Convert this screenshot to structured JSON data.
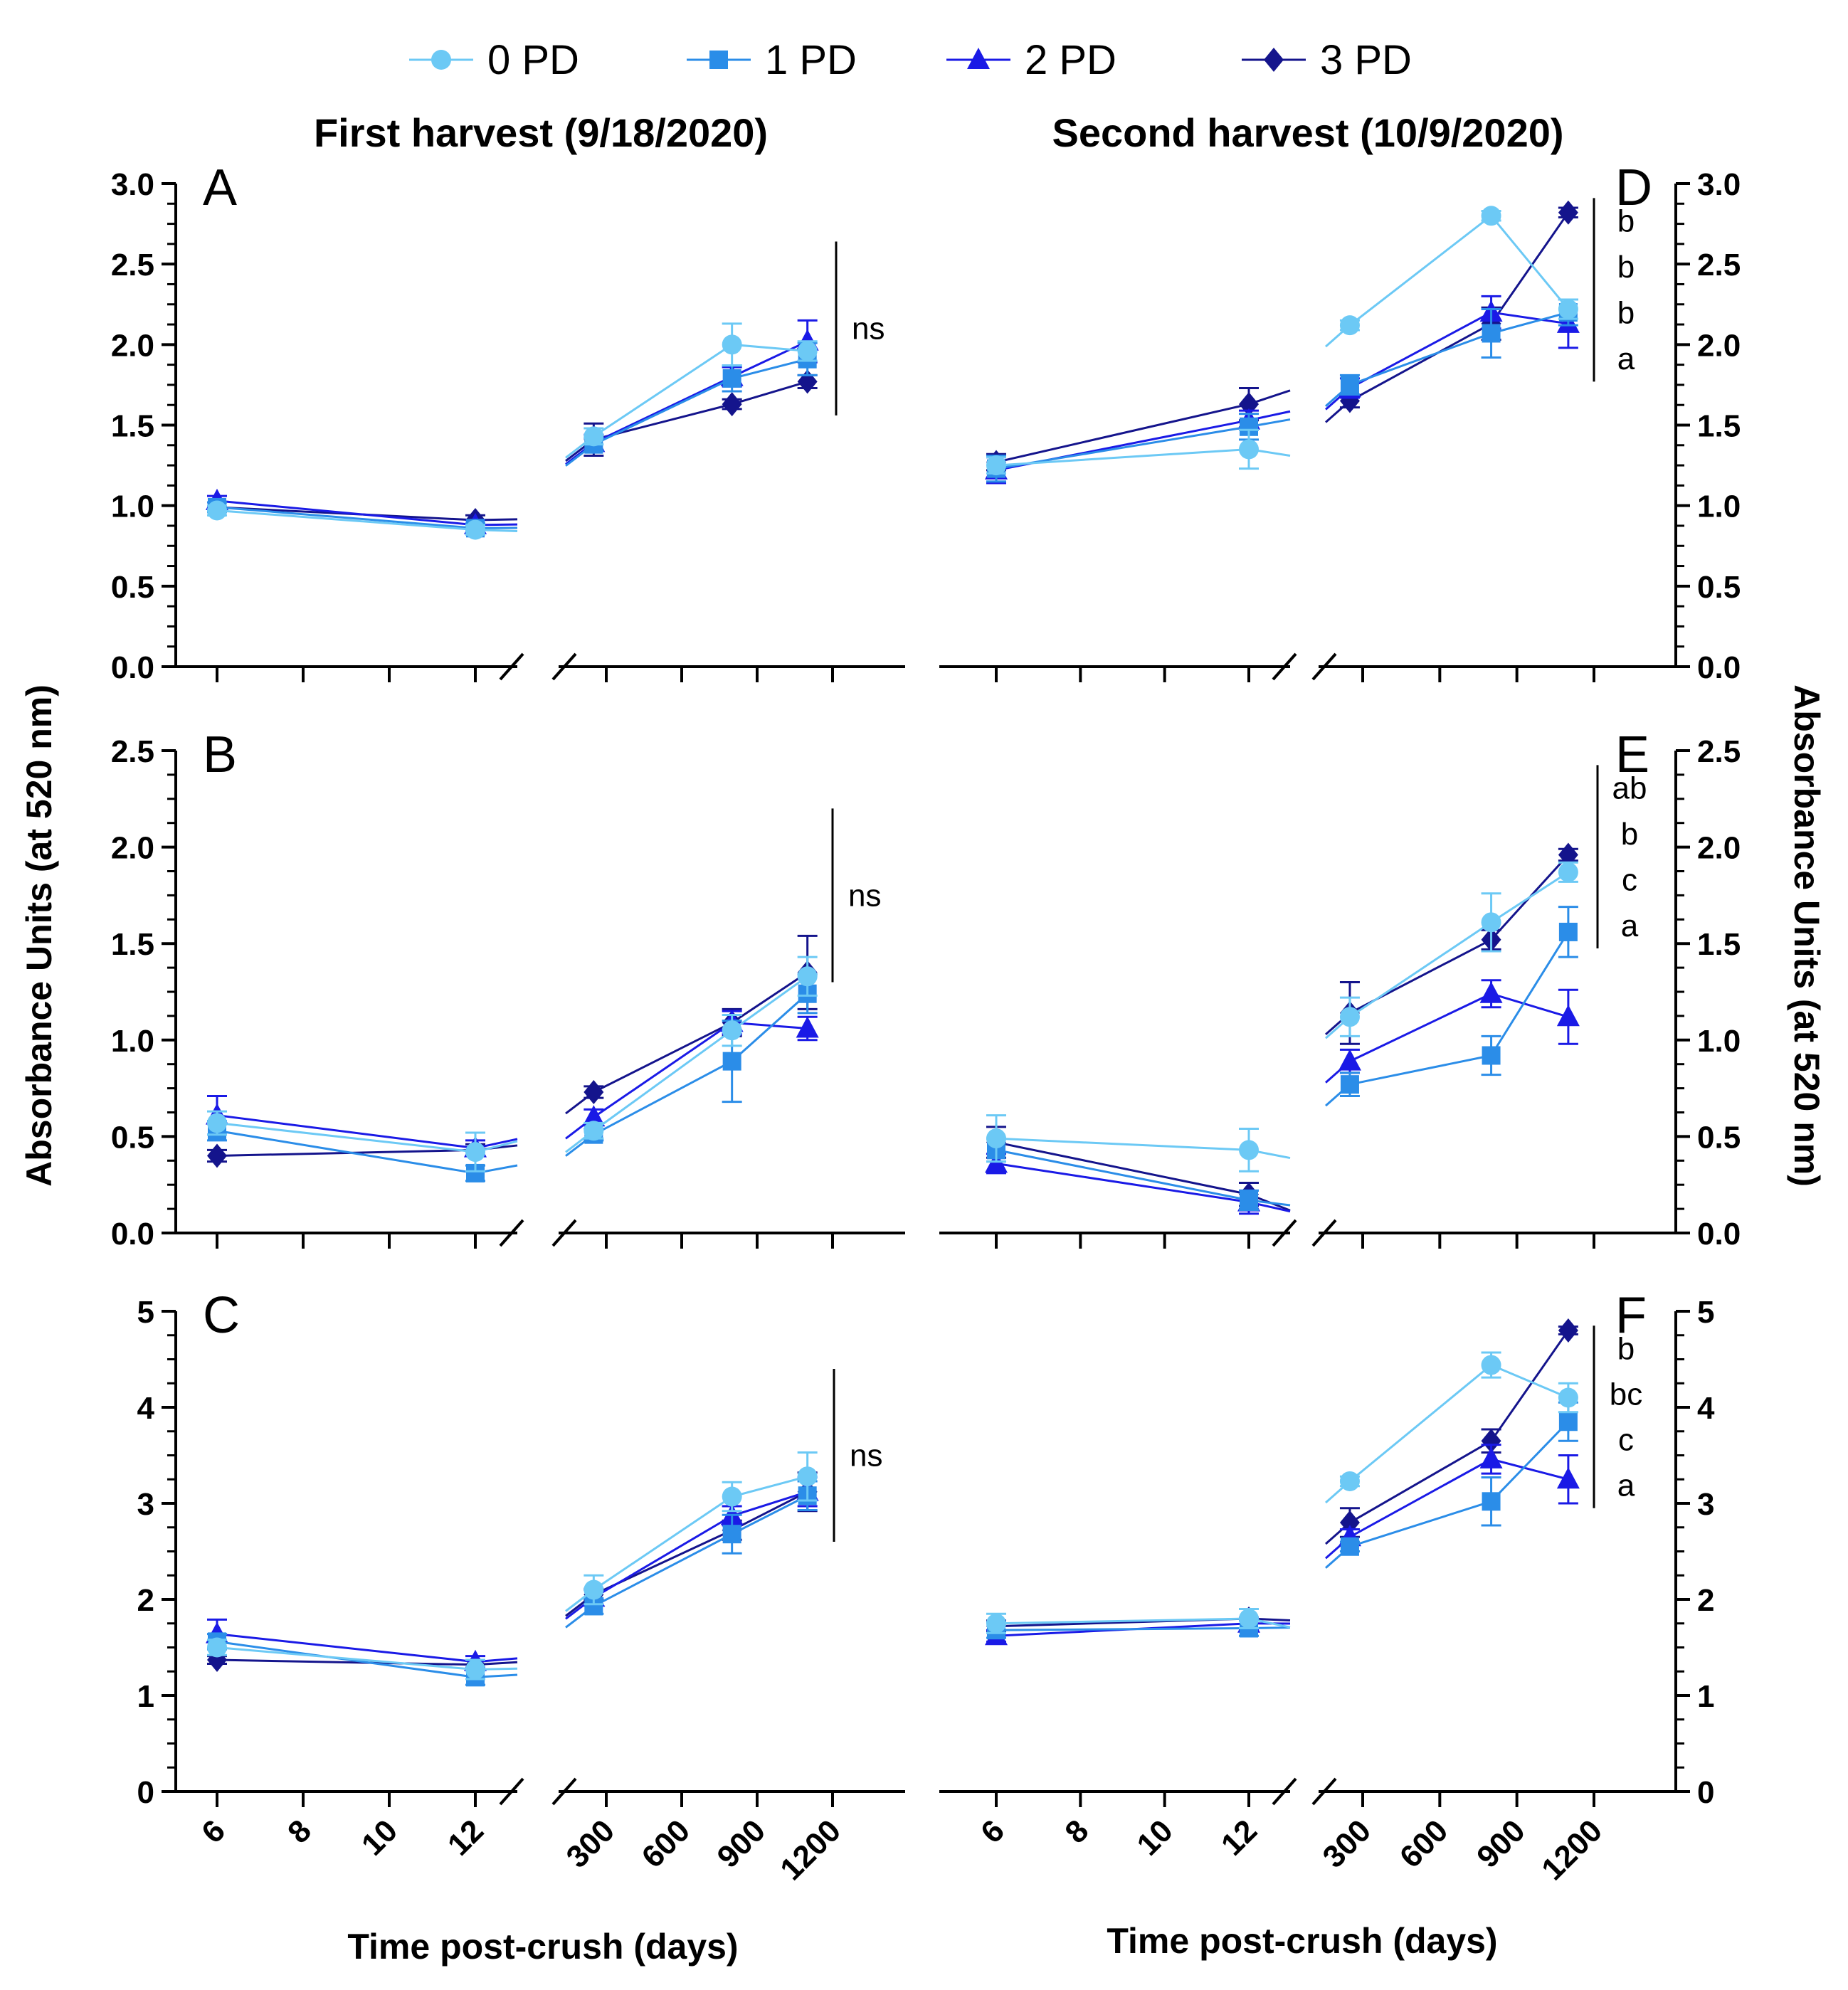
{
  "legend": {
    "entries": [
      {
        "label": "0 PD",
        "color": "#6cc9f5",
        "marker": "circle"
      },
      {
        "label": "1 PD",
        "color": "#2b8de8",
        "marker": "square"
      },
      {
        "label": "2 PD",
        "color": "#1a1ae6",
        "marker": "triangle"
      },
      {
        "label": "3 PD",
        "color": "#14148c",
        "marker": "diamond"
      }
    ]
  },
  "titles": {
    "first_harvest": "First harvest  (9/18/2020)",
    "second_harvest": "Second harvest (10/9/2020)"
  },
  "axes": {
    "y_label_left": "Absorbance Units (at 520 nm)",
    "y_label_right": "Absorbance Units (at 520 nm)",
    "x_label": "Time post-crush (days)",
    "x_ticks_early": [
      "6",
      "8",
      "10",
      "12"
    ],
    "x_ticks_late": [
      "300",
      "600",
      "900",
      "1200"
    ]
  },
  "chart_data": [
    {
      "panel": "A",
      "type": "line",
      "harvest": "First harvest",
      "ylim": [
        0,
        3.0
      ],
      "yticks": [
        "0.0",
        "0.5",
        "1.0",
        "1.5",
        "2.0",
        "2.5",
        "3.0"
      ],
      "x": [
        6,
        12,
        250,
        800,
        1100
      ],
      "series": [
        {
          "name": "0 PD",
          "values": [
            0.97,
            0.85,
            1.43,
            2.0,
            1.96
          ],
          "errors": [
            0.03,
            0.03,
            0.05,
            0.13,
            0.06
          ]
        },
        {
          "name": "1 PD",
          "values": [
            0.99,
            0.86,
            1.38,
            1.79,
            1.91
          ],
          "errors": [
            0.03,
            0.03,
            0.04,
            0.08,
            0.1
          ]
        },
        {
          "name": "2 PD",
          "values": [
            1.03,
            0.88,
            1.39,
            1.8,
            2.02
          ],
          "errors": [
            0.03,
            0.03,
            0.05,
            0.06,
            0.13
          ]
        },
        {
          "name": "3 PD",
          "values": [
            0.99,
            0.91,
            1.41,
            1.63,
            1.77
          ],
          "errors": [
            0.03,
            0.03,
            0.1,
            0.03,
            0.04
          ]
        }
      ],
      "significance": [
        "ns"
      ]
    },
    {
      "panel": "B",
      "type": "line",
      "harvest": "First harvest",
      "ylim": [
        0,
        2.5
      ],
      "yticks": [
        "0.0",
        "0.5",
        "1.0",
        "1.5",
        "2.0",
        "2.5"
      ],
      "x": [
        6,
        12,
        250,
        800,
        1100
      ],
      "series": [
        {
          "name": "0 PD",
          "values": [
            0.57,
            0.42,
            0.53,
            1.05,
            1.33
          ],
          "errors": [
            0.06,
            0.1,
            0.04,
            0.08,
            0.1
          ]
        },
        {
          "name": "1 PD",
          "values": [
            0.53,
            0.31,
            0.51,
            0.89,
            1.24
          ],
          "errors": [
            0.05,
            0.04,
            0.03,
            0.21,
            0.1
          ]
        },
        {
          "name": "2 PD",
          "values": [
            0.61,
            0.44,
            0.6,
            1.09,
            1.06
          ],
          "errors": [
            0.1,
            0.04,
            0.04,
            0.06,
            0.06
          ]
        },
        {
          "name": "3 PD",
          "values": [
            0.4,
            0.43,
            0.73,
            1.09,
            1.35
          ],
          "errors": [
            0.03,
            0.03,
            0.03,
            0.07,
            0.19
          ]
        }
      ],
      "significance": [
        "ns"
      ]
    },
    {
      "panel": "C",
      "type": "line",
      "harvest": "First harvest",
      "ylim": [
        0,
        5
      ],
      "yticks": [
        "0",
        "1",
        "2",
        "3",
        "4",
        "5"
      ],
      "x": [
        6,
        12,
        250,
        800,
        1100
      ],
      "series": [
        {
          "name": "0 PD",
          "values": [
            1.5,
            1.27,
            2.1,
            3.07,
            3.28
          ],
          "errors": [
            0.08,
            0.1,
            0.15,
            0.15,
            0.25
          ]
        },
        {
          "name": "1 PD",
          "values": [
            1.56,
            1.19,
            1.93,
            2.68,
            3.08
          ],
          "errors": [
            0.08,
            0.08,
            0.08,
            0.2,
            0.15
          ]
        },
        {
          "name": "2 PD",
          "values": [
            1.64,
            1.35,
            2.02,
            2.87,
            3.12
          ],
          "errors": [
            0.15,
            0.06,
            0.08,
            0.1,
            0.15
          ]
        },
        {
          "name": "3 PD",
          "values": [
            1.37,
            1.32,
            2.05,
            2.72,
            3.12
          ],
          "errors": [
            0.04,
            0.04,
            0.06,
            0.1,
            0.2
          ]
        }
      ],
      "significance": [
        "ns"
      ]
    },
    {
      "panel": "D",
      "type": "line",
      "harvest": "Second harvest",
      "ylim": [
        0,
        3.0
      ],
      "yticks": [
        "0.0",
        "0.5",
        "1.0",
        "1.5",
        "2.0",
        "2.5",
        "3.0"
      ],
      "x": [
        6,
        12,
        250,
        800,
        1100
      ],
      "series": [
        {
          "name": "0 PD",
          "values": [
            1.25,
            1.35,
            2.12,
            2.8,
            2.22
          ],
          "errors": [
            0.05,
            0.12,
            0.03,
            0.03,
            0.06
          ]
        },
        {
          "name": "1 PD",
          "values": [
            1.23,
            1.49,
            1.75,
            2.07,
            2.2
          ],
          "errors": [
            0.08,
            0.08,
            0.06,
            0.15,
            0.08
          ]
        },
        {
          "name": "2 PD",
          "values": [
            1.22,
            1.53,
            1.73,
            2.2,
            2.13
          ],
          "errors": [
            0.08,
            0.06,
            0.06,
            0.1,
            0.15
          ]
        },
        {
          "name": "3 PD",
          "values": [
            1.27,
            1.63,
            1.65,
            2.13,
            2.82
          ],
          "errors": [
            0.05,
            0.1,
            0.04,
            0.1,
            0.03
          ]
        }
      ],
      "significance": [
        "b",
        "b",
        "b",
        "a"
      ]
    },
    {
      "panel": "E",
      "type": "line",
      "harvest": "Second harvest",
      "ylim": [
        0,
        2.5
      ],
      "yticks": [
        "0.0",
        "0.5",
        "1.0",
        "1.5",
        "2.0",
        "2.5"
      ],
      "x": [
        6,
        12,
        250,
        800,
        1100
      ],
      "series": [
        {
          "name": "0 PD",
          "values": [
            0.49,
            0.43,
            1.12,
            1.61,
            1.87
          ],
          "errors": [
            0.12,
            0.11,
            0.1,
            0.15,
            0.05
          ]
        },
        {
          "name": "1 PD",
          "values": [
            0.43,
            0.17,
            0.77,
            0.92,
            1.56
          ],
          "errors": [
            0.06,
            0.05,
            0.06,
            0.1,
            0.13
          ]
        },
        {
          "name": "2 PD",
          "values": [
            0.36,
            0.16,
            0.89,
            1.24,
            1.12
          ],
          "errors": [
            0.05,
            0.06,
            0.06,
            0.07,
            0.14
          ]
        },
        {
          "name": "3 PD",
          "values": [
            0.47,
            0.2,
            1.14,
            1.52,
            1.96
          ],
          "errors": [
            0.08,
            0.06,
            0.16,
            0.05,
            0.03
          ]
        }
      ],
      "significance": [
        "ab",
        "b",
        "c",
        "a"
      ]
    },
    {
      "panel": "F",
      "type": "line",
      "harvest": "Second harvest",
      "ylim": [
        0,
        5
      ],
      "yticks": [
        "0",
        "1",
        "2",
        "3",
        "4",
        "5"
      ],
      "x": [
        6,
        12,
        250,
        800,
        1100
      ],
      "series": [
        {
          "name": "0 PD",
          "values": [
            1.75,
            1.8,
            3.23,
            4.44,
            4.1
          ],
          "errors": [
            0.1,
            0.1,
            0.05,
            0.13,
            0.15
          ]
        },
        {
          "name": "1 PD",
          "values": [
            1.68,
            1.7,
            2.55,
            3.02,
            3.85
          ],
          "errors": [
            0.08,
            0.08,
            0.05,
            0.25,
            0.2
          ]
        },
        {
          "name": "2 PD",
          "values": [
            1.62,
            1.75,
            2.65,
            3.46,
            3.25
          ],
          "errors": [
            0.06,
            0.06,
            0.08,
            0.15,
            0.25
          ]
        },
        {
          "name": "3 PD",
          "values": [
            1.72,
            1.8,
            2.8,
            3.65,
            4.8
          ],
          "errors": [
            0.06,
            0.1,
            0.15,
            0.12,
            0.04
          ]
        }
      ],
      "significance": [
        "b",
        "bc",
        "c",
        "a"
      ]
    }
  ]
}
